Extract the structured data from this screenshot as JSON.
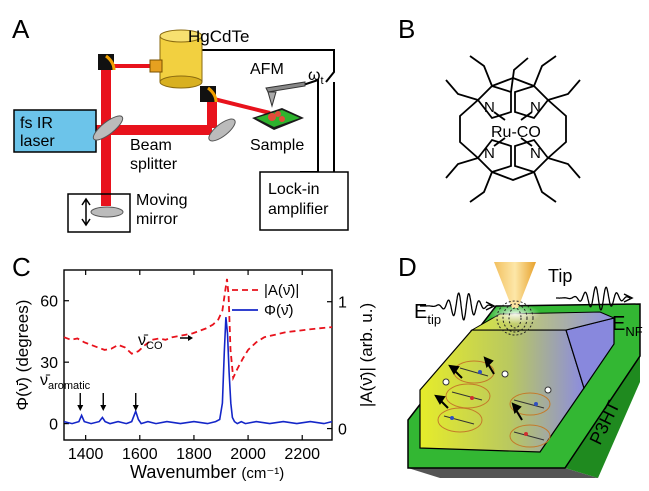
{
  "panels": {
    "a": {
      "letter": "A",
      "laser": "fs IR",
      "laser2": "laser",
      "detector": "HgCdTe",
      "afm": "AFM",
      "omega": "ω",
      "omega_sub": "t",
      "splitter1": "Beam",
      "splitter2": "splitter",
      "sample": "Sample",
      "mirror1": "Moving",
      "mirror2": "mirror",
      "lockin1": "Lock-in",
      "lockin2": "amplifier"
    },
    "b": {
      "letter": "B",
      "center": "Ru-CO",
      "n_label": "N"
    },
    "c": {
      "letter": "C",
      "annot_co": "ν̄",
      "annot_co_sub": "CO",
      "annot_arom": "ν̄",
      "annot_arom_sub": "aromatic"
    },
    "d": {
      "letter": "D",
      "tip": "Tip",
      "e": "E",
      "e_tip_sub": "tip",
      "e_nf_sub": "NF",
      "material": "P3HT"
    }
  },
  "colors": {
    "beam": "#e8121c",
    "laser_box": "#6cc4ea",
    "phase": "#1426c8",
    "amp": "#e8121c",
    "p3ht_green": "#2bb02b",
    "face_blue": "#8888dd"
  },
  "chart_data": {
    "type": "line",
    "xlabel": "Wavenumber",
    "xunit": "(cm⁻¹)",
    "ylabel_left": "Φ(ν̄) (degrees)",
    "ylabel_right": "|A(ν̄)| (arb. u.)",
    "xlim": [
      1320,
      2310
    ],
    "ylim_left": [
      -8,
      75
    ],
    "ylim_right": [
      -0.09,
      1.25
    ],
    "xticks": [
      "1400",
      "1600",
      "1800",
      "2000",
      "2200"
    ],
    "xtick_values": [
      1400,
      1600,
      1800,
      2000,
      2200
    ],
    "yticks_left": [
      "0",
      "30",
      "60"
    ],
    "ytick_left_values": [
      0,
      30,
      60
    ],
    "yticks_right": [
      "0",
      "1"
    ],
    "ytick_right_values": [
      0,
      1
    ],
    "legend": [
      "|A(ν̄)|",
      "Φ(ν̄)"
    ],
    "series": [
      {
        "name": "|A(ν̄)|",
        "axis": "right",
        "style": "dashed",
        "x": [
          1320,
          1345,
          1370,
          1395,
          1420,
          1445,
          1470,
          1495,
          1520,
          1545,
          1570,
          1595,
          1620,
          1645,
          1670,
          1695,
          1720,
          1745,
          1770,
          1795,
          1820,
          1845,
          1870,
          1890,
          1905,
          1915,
          1922,
          1928,
          1935,
          1945,
          1960,
          1980,
          2000,
          2030,
          2060,
          2100,
          2140,
          2180,
          2220,
          2260,
          2310
        ],
        "y": [
          0.72,
          0.7,
          0.71,
          0.68,
          0.66,
          0.64,
          0.62,
          0.63,
          0.66,
          0.64,
          0.59,
          0.61,
          0.66,
          0.7,
          0.71,
          0.7,
          0.72,
          0.73,
          0.74,
          0.75,
          0.77,
          0.79,
          0.82,
          0.86,
          0.93,
          1.08,
          1.18,
          1.05,
          0.62,
          0.4,
          0.47,
          0.55,
          0.62,
          0.68,
          0.72,
          0.74,
          0.76,
          0.77,
          0.78,
          0.79,
          0.8
        ]
      },
      {
        "name": "Φ(ν̄)",
        "axis": "left",
        "style": "solid",
        "x": [
          1320,
          1350,
          1375,
          1385,
          1395,
          1420,
          1450,
          1462,
          1472,
          1490,
          1520,
          1550,
          1570,
          1585,
          1595,
          1605,
          1630,
          1660,
          1700,
          1750,
          1800,
          1850,
          1880,
          1895,
          1905,
          1912,
          1918,
          1924,
          1930,
          1936,
          1942,
          1950,
          1960,
          1975,
          1990,
          2030,
          2080,
          2130,
          2180,
          2230,
          2280,
          2310
        ],
        "y": [
          1,
          0,
          1,
          4,
          1,
          0,
          1,
          3,
          1,
          0,
          1,
          0,
          1,
          6,
          2,
          0,
          1,
          0,
          1,
          0,
          1,
          0,
          1,
          2,
          10,
          35,
          52,
          44,
          25,
          10,
          3,
          1,
          0,
          1,
          0,
          1,
          0,
          1,
          0,
          1,
          0,
          1
        ]
      }
    ]
  }
}
